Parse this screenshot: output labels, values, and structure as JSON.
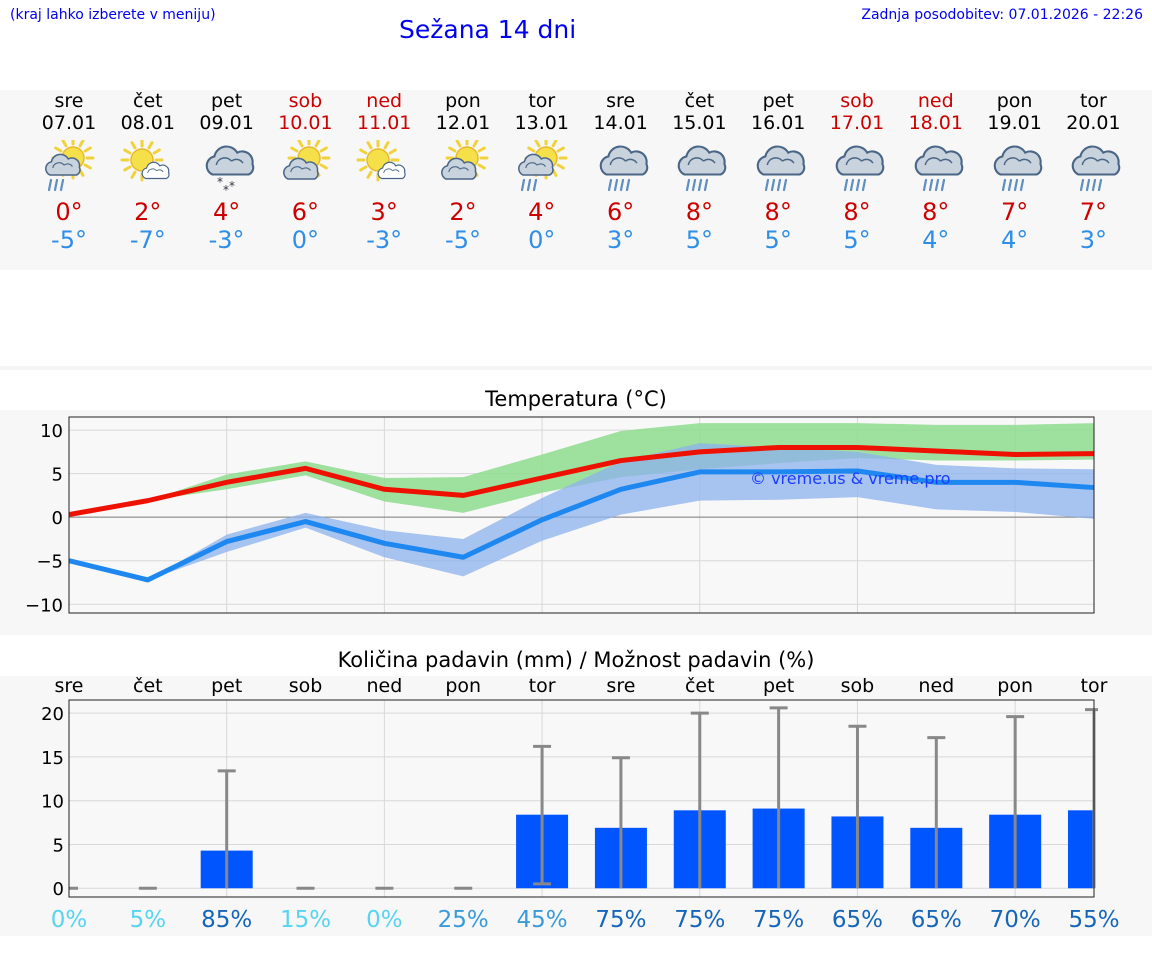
{
  "header": {
    "left_note": "(kraj lahko izberete v meniju)",
    "title": "Sežana 14 dni",
    "updated": "Zadnja posodobitev: 07.01.2026 - 22:26"
  },
  "days": [
    {
      "name": "sre",
      "date": "07.01",
      "weekend": false,
      "icon": "sun-cloud-rain-icon",
      "tmax": "0°",
      "tmin": "-5°"
    },
    {
      "name": "čet",
      "date": "08.01",
      "weekend": false,
      "icon": "sun-small-cloud-icon",
      "tmax": "2°",
      "tmin": "-7°"
    },
    {
      "name": "pet",
      "date": "09.01",
      "weekend": false,
      "icon": "cloud-snow-icon",
      "tmax": "4°",
      "tmin": "-3°"
    },
    {
      "name": "sob",
      "date": "10.01",
      "weekend": true,
      "icon": "sun-cloud-icon",
      "tmax": "6°",
      "tmin": "0°"
    },
    {
      "name": "ned",
      "date": "11.01",
      "weekend": true,
      "icon": "sun-small-cloud-icon",
      "tmax": "3°",
      "tmin": "-3°"
    },
    {
      "name": "pon",
      "date": "12.01",
      "weekend": false,
      "icon": "sun-cloud-icon",
      "tmax": "2°",
      "tmin": "-5°"
    },
    {
      "name": "tor",
      "date": "13.01",
      "weekend": false,
      "icon": "sun-cloud-rain-icon",
      "tmax": "4°",
      "tmin": "0°"
    },
    {
      "name": "sre",
      "date": "14.01",
      "weekend": false,
      "icon": "cloud-rain-icon",
      "tmax": "6°",
      "tmin": "3°"
    },
    {
      "name": "čet",
      "date": "15.01",
      "weekend": false,
      "icon": "cloud-rain-icon",
      "tmax": "8°",
      "tmin": "5°"
    },
    {
      "name": "pet",
      "date": "16.01",
      "weekend": false,
      "icon": "cloud-rain-icon",
      "tmax": "8°",
      "tmin": "5°"
    },
    {
      "name": "sob",
      "date": "17.01",
      "weekend": true,
      "icon": "cloud-rain-icon",
      "tmax": "8°",
      "tmin": "5°"
    },
    {
      "name": "ned",
      "date": "18.01",
      "weekend": true,
      "icon": "cloud-rain-icon",
      "tmax": "8°",
      "tmin": "4°"
    },
    {
      "name": "pon",
      "date": "19.01",
      "weekend": false,
      "icon": "cloud-rain-icon",
      "tmax": "7°",
      "tmin": "4°"
    },
    {
      "name": "tor",
      "date": "20.01",
      "weekend": false,
      "icon": "cloud-rain-icon",
      "tmax": "7°",
      "tmin": "3°"
    }
  ],
  "colors": {
    "max_line": "#ee1100",
    "min_line": "#1e88f0",
    "max_band": "#8edc8e",
    "min_band": "#8cb1ee",
    "bar": "#0055ff",
    "whisker": "#888888",
    "weekend": "#cc0000"
  },
  "chart_data": [
    {
      "type": "line",
      "title": "Temperatura (°C)",
      "watermark": "© vreme.us & vreme.pro",
      "ylim": [
        -11,
        11.5
      ],
      "yticks": [
        -10,
        -5,
        0,
        5,
        10
      ],
      "ytick_labels": [
        "−10",
        "−5",
        "0",
        "5",
        "10"
      ],
      "grid": true,
      "series": [
        {
          "name": "max",
          "values": [
            0.3,
            1.9,
            4.0,
            5.6,
            3.2,
            2.5,
            4.5,
            6.5,
            7.5,
            8.0,
            8.0,
            7.6,
            7.2,
            7.3
          ]
        },
        {
          "name": "min",
          "values": [
            -5.0,
            -7.2,
            -2.8,
            -0.5,
            -3.0,
            -4.6,
            -0.3,
            3.2,
            5.2,
            5.2,
            5.3,
            4.0,
            4.0,
            3.4
          ]
        }
      ],
      "bands": [
        {
          "name": "max_range",
          "low": [
            0.3,
            1.9,
            3.2,
            4.8,
            1.8,
            0.5,
            2.8,
            4.6,
            5.5,
            6.2,
            6.8,
            6.5,
            6.5,
            6.6
          ],
          "high": [
            0.3,
            1.9,
            4.9,
            6.4,
            4.5,
            4.6,
            7.2,
            9.9,
            10.8,
            10.8,
            10.8,
            10.6,
            10.6,
            10.8
          ]
        },
        {
          "name": "min_range",
          "low": [
            -5.0,
            -7.2,
            -4.0,
            -1.2,
            -4.6,
            -6.8,
            -2.7,
            0.3,
            1.9,
            2.0,
            2.3,
            0.9,
            0.6,
            -0.2
          ]
        },
        {
          "name": "min_range_high",
          "high": [
            -5.0,
            -7.2,
            -2.0,
            0.5,
            -1.5,
            -2.5,
            2.2,
            6.4,
            8.5,
            8.0,
            7.5,
            6.0,
            5.6,
            5.5
          ]
        }
      ]
    },
    {
      "type": "bar",
      "title": "Količina padavin (mm) / Možnost padavin (%)",
      "categories": [
        "sre",
        "čet",
        "pet",
        "sob",
        "ned",
        "pon",
        "tor",
        "sre",
        "čet",
        "pet",
        "sob",
        "ned",
        "pon",
        "tor"
      ],
      "ylim": [
        -1,
        21.5
      ],
      "yticks": [
        0,
        5,
        10,
        15,
        20
      ],
      "ytick_labels": [
        "0",
        "5",
        "10",
        "15",
        "20"
      ],
      "values": [
        0,
        0,
        4.3,
        0,
        0,
        0,
        8.4,
        6.9,
        8.9,
        9.1,
        8.2,
        6.9,
        8.4,
        8.9
      ],
      "err_high": [
        0,
        0,
        13.4,
        0,
        0,
        0,
        16.2,
        14.9,
        20.0,
        20.6,
        18.5,
        17.2,
        19.6,
        20.4
      ],
      "err_low": [
        0,
        0,
        0,
        0,
        0,
        0,
        0.5,
        0,
        0,
        0,
        0,
        0,
        0,
        0
      ],
      "chance": [
        "0%",
        "5%",
        "85%",
        "15%",
        "0%",
        "25%",
        "45%",
        "75%",
        "75%",
        "75%",
        "65%",
        "65%",
        "70%",
        "55%"
      ]
    }
  ]
}
